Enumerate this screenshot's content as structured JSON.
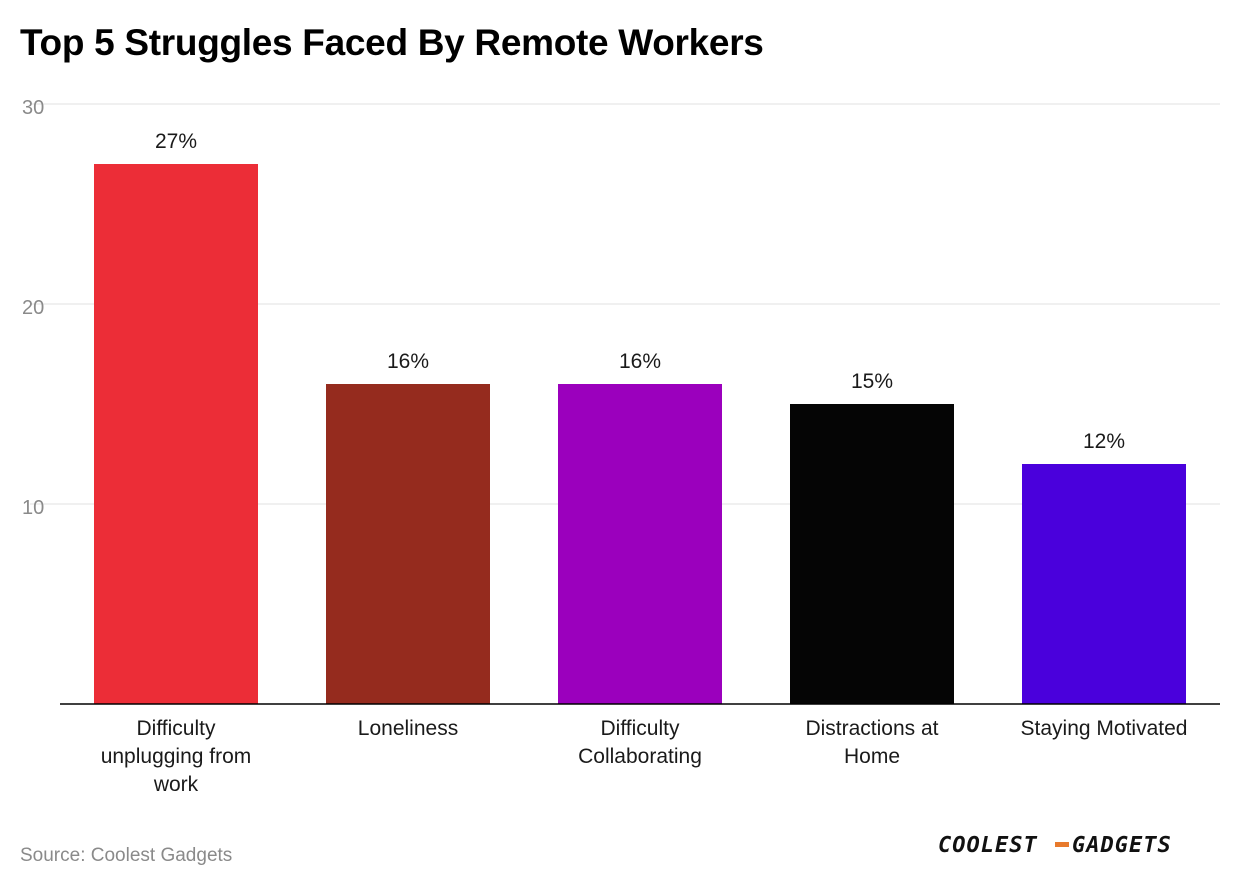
{
  "title": "Top 5 Struggles Faced By Remote Workers",
  "source": "Source: Coolest Gadgets",
  "logo": {
    "left": "COOLEST",
    "right": "GADGETS",
    "dash_color": "#e87a2c"
  },
  "chart_data": {
    "type": "bar",
    "title": "Top 5 Struggles Faced By Remote Workers",
    "xlabel": "",
    "ylabel": "",
    "ylim": [
      0,
      30
    ],
    "yticks": [
      10,
      20,
      30
    ],
    "grid": true,
    "legend": "none",
    "categories": [
      [
        "Difficulty",
        "unplugging from",
        "work"
      ],
      [
        "Loneliness"
      ],
      [
        "Difficulty",
        "Collaborating"
      ],
      [
        "Distractions at",
        "Home"
      ],
      [
        "Staying Motivated"
      ]
    ],
    "values": [
      27,
      16,
      16,
      15,
      12
    ],
    "value_labels": [
      "27%",
      "16%",
      "16%",
      "15%",
      "12%"
    ],
    "colors": [
      "#ec2d37",
      "#952b1e",
      "#9b00bd",
      "#050505",
      "#4a00dc"
    ]
  }
}
